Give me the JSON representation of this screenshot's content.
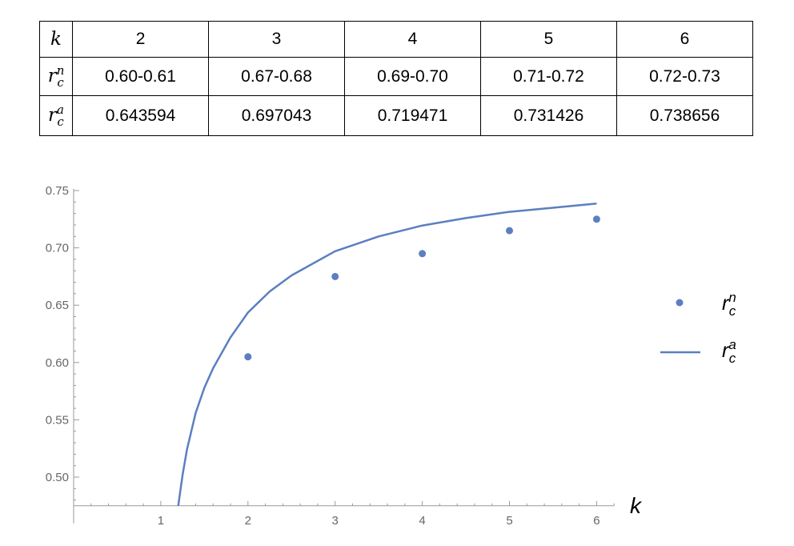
{
  "table": {
    "header_symbol": "k",
    "k_values": [
      "2",
      "3",
      "4",
      "5",
      "6"
    ],
    "rows": [
      {
        "symbol": "r",
        "sub": "c",
        "sup": "n",
        "values": [
          "0.60-0.61",
          "0.67-0.68",
          "0.69-0.70",
          "0.71-0.72",
          "0.72-0.73"
        ]
      },
      {
        "symbol": "r",
        "sub": "c",
        "sup": "a",
        "values": [
          "0.643594",
          "0.697043",
          "0.719471",
          "0.731426",
          "0.738656"
        ]
      }
    ]
  },
  "chart_data": {
    "type": "scatter",
    "title": "",
    "xlabel": "k",
    "ylabel": "",
    "xlim": [
      0,
      6.2
    ],
    "ylim": [
      0.475,
      0.75
    ],
    "x_ticks": [
      "1",
      "2",
      "3",
      "4",
      "5",
      "6"
    ],
    "y_ticks": [
      "0.50",
      "0.55",
      "0.60",
      "0.65",
      "0.70",
      "0.75"
    ],
    "grid": false,
    "legend_placement": "right",
    "series": [
      {
        "name": "r_c^n",
        "legend": {
          "symbol": "r",
          "sub": "c",
          "sup": "n"
        },
        "kind": "points",
        "color": "#5b7fc0",
        "x": [
          2,
          3,
          4,
          5,
          6
        ],
        "y": [
          0.605,
          0.675,
          0.695,
          0.715,
          0.725
        ]
      },
      {
        "name": "r_c^a",
        "legend": {
          "symbol": "r",
          "sub": "c",
          "sup": "a"
        },
        "kind": "line",
        "color": "#5b7fc0",
        "x": [
          1.2,
          1.25,
          1.3,
          1.4,
          1.5,
          1.6,
          1.8,
          2,
          2.25,
          2.5,
          3,
          3.5,
          4,
          4.5,
          5,
          5.5,
          6
        ],
        "y": [
          0.475,
          0.502,
          0.524,
          0.556,
          0.578,
          0.595,
          0.622,
          0.643594,
          0.662,
          0.676,
          0.697043,
          0.71,
          0.719471,
          0.726,
          0.731426,
          0.735,
          0.738656
        ]
      }
    ]
  }
}
